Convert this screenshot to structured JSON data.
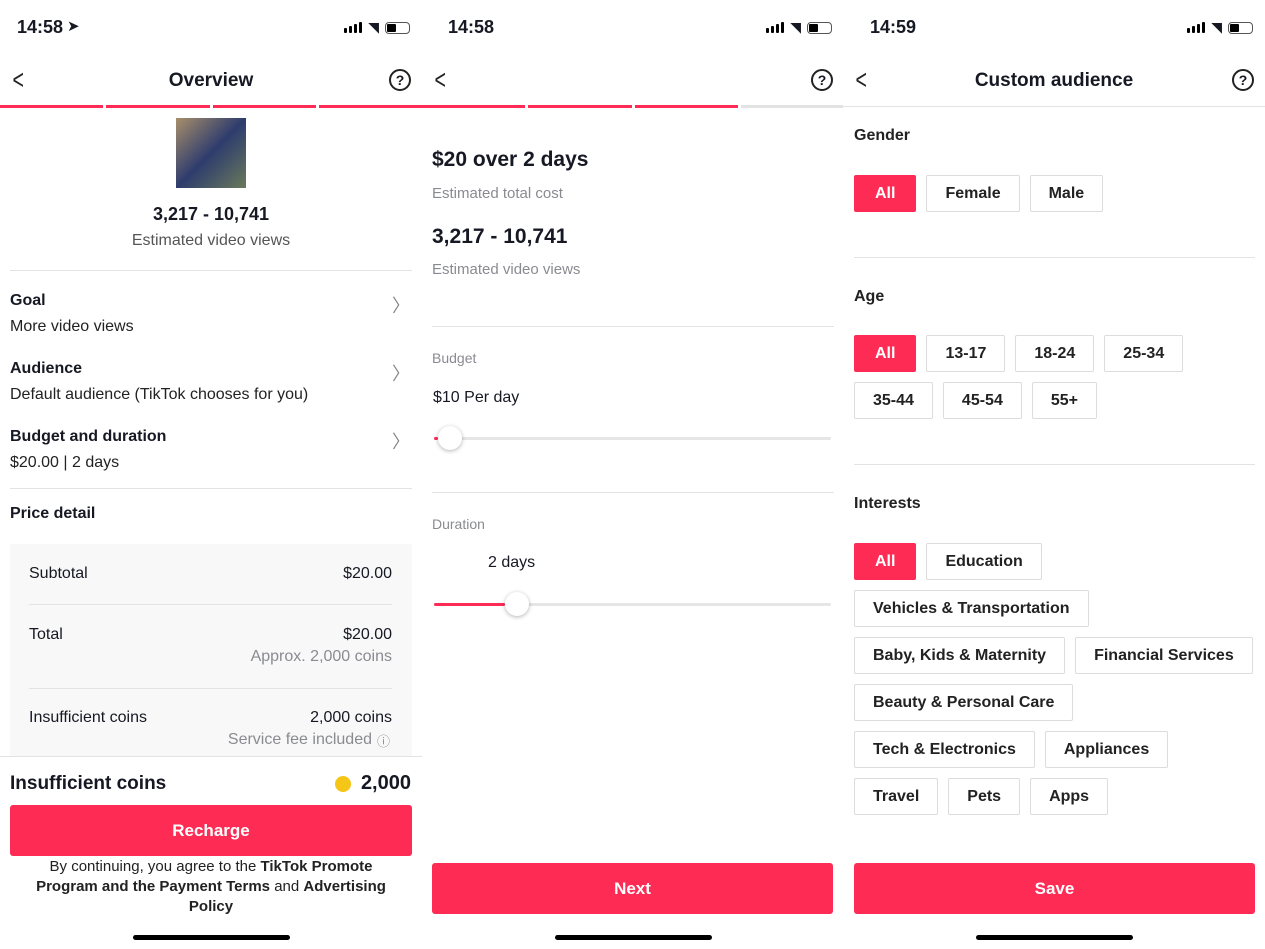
{
  "screens": [
    {
      "time": "14:58",
      "title": "Overview",
      "views": "3,217 - 10,741",
      "views_label": "Estimated video views",
      "rows": [
        {
          "title": "Goal",
          "value": "More video views"
        },
        {
          "title": "Audience",
          "value": "Default audience (TikTok chooses for you)"
        },
        {
          "title": "Budget and duration",
          "value": "$20.00 | 2 days"
        }
      ],
      "price_title": "Price detail",
      "subtotal_label": "Subtotal",
      "subtotal": "$20.00",
      "total_label": "Total",
      "total": "$20.00",
      "total_sub": "Approx. 2,000 coins",
      "insuff_label": "Insufficient coins",
      "insuff": "2,000 coins",
      "insuff_sub": "Service fee included",
      "footer_label": "Insufficient coins",
      "footer_coins": "2,000",
      "recharge": "Recharge",
      "terms": {
        "pre": "By continuing, you agree to the ",
        "link1": "TikTok Promote Program and the Payment Terms",
        "mid": " and ",
        "link2": "Advertising Policy"
      }
    },
    {
      "time": "14:58",
      "headline": "$20 over 2 days",
      "headline_sub": "Estimated total cost",
      "views": "3,217 - 10,741",
      "views_label": "Estimated video views",
      "budget_label": "Budget",
      "budget_value": "$10 Per day",
      "budget_fraction": 0.0,
      "duration_label": "Duration",
      "duration_value": "2 days",
      "duration_fraction": 0.18,
      "next": "Next"
    },
    {
      "time": "14:59",
      "title": "Custom audience",
      "gender_label": "Gender",
      "gender": [
        "All",
        "Female",
        "Male"
      ],
      "age_label": "Age",
      "age": [
        "All",
        "13-17",
        "18-24",
        "25-34",
        "35-44",
        "45-54",
        "55+"
      ],
      "interests_label": "Interests",
      "interests": [
        "All",
        "Education",
        "Vehicles & Transportation",
        "Baby, Kids & Maternity",
        "Financial Services",
        "Beauty & Personal Care",
        "Tech & Electronics",
        "Appliances",
        "Travel",
        "Pets",
        "Apps"
      ],
      "save": "Save"
    }
  ],
  "colors": {
    "accent": "#fe2c55"
  }
}
